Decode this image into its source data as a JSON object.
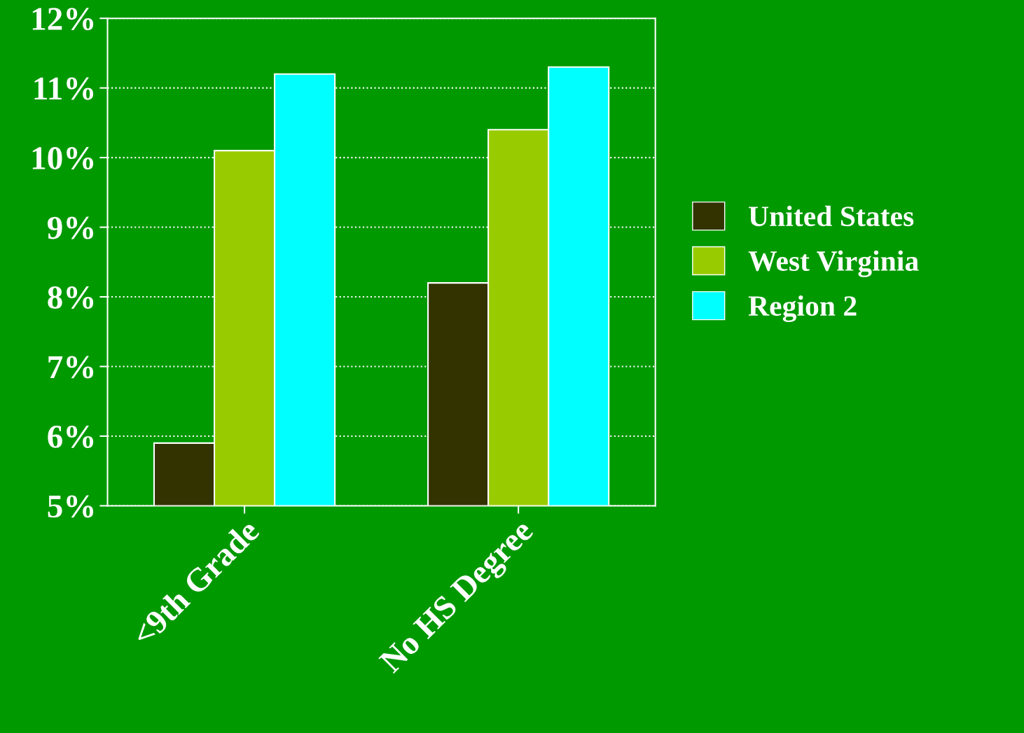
{
  "chart_data": {
    "type": "bar",
    "categories": [
      "<9th Grade",
      "No HS Degree"
    ],
    "series": [
      {
        "name": "United States",
        "color": "#333300",
        "values": [
          5.9,
          8.2
        ]
      },
      {
        "name": "West Virginia",
        "color": "#99cc00",
        "values": [
          10.1,
          10.4
        ]
      },
      {
        "name": "Region 2",
        "color": "#00ffff",
        "values": [
          11.2,
          11.3
        ]
      }
    ],
    "ylim": [
      5,
      12
    ],
    "yticks": [
      {
        "value": 5,
        "label": "5%"
      },
      {
        "value": 6,
        "label": "6%"
      },
      {
        "value": 7,
        "label": "7%"
      },
      {
        "value": 8,
        "label": "8%"
      },
      {
        "value": 9,
        "label": "9%"
      },
      {
        "value": 10,
        "label": "10%"
      },
      {
        "value": 11,
        "label": "11%"
      },
      {
        "value": 12,
        "label": "12%"
      }
    ],
    "grid": "y",
    "line_style": "dotted",
    "legend": "right"
  }
}
